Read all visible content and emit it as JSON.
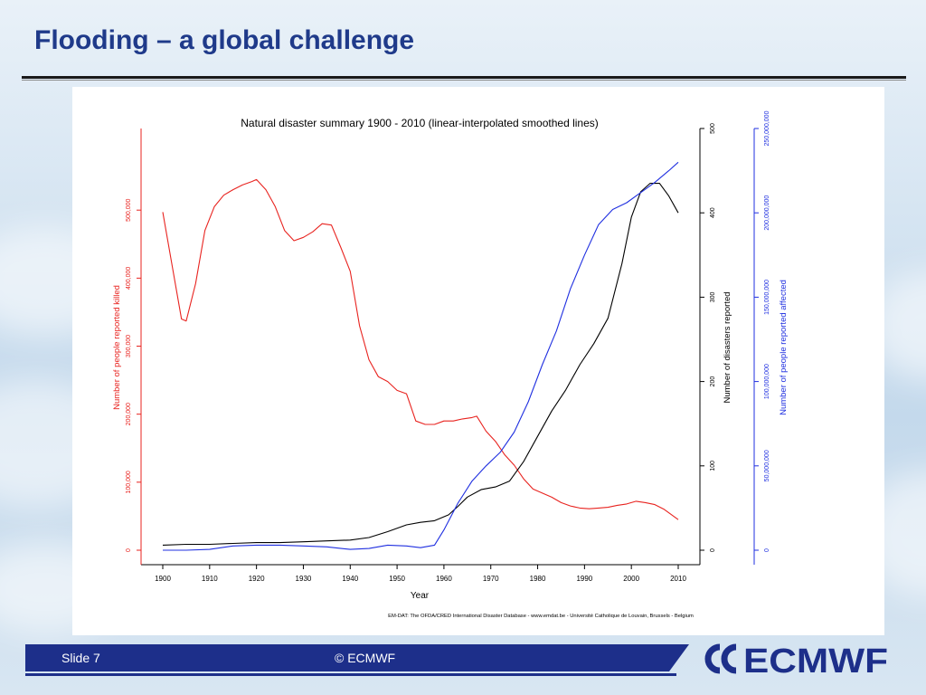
{
  "slide": {
    "title": "Flooding – a global challenge",
    "footer_slide": "Slide 7",
    "footer_copyright": "© ECMWF",
    "logo_text": "ECMWF"
  },
  "colors": {
    "title": "#1f3a8a",
    "footer": "#1d2f8a",
    "killed": "#e8231f",
    "reported": "#000000",
    "affected": "#1f2fe0"
  },
  "chart_data": {
    "type": "line",
    "title": "Natural disaster summary 1900 - 2010 (linear-interpolated smoothed lines)",
    "xlabel": "Year",
    "xlim": [
      1900,
      2010
    ],
    "x_ticks": [
      1900,
      1910,
      1920,
      1930,
      1940,
      1950,
      1960,
      1970,
      1980,
      1990,
      2000,
      2010
    ],
    "source": "EM-DAT: The OFDA/CRED International Disaster Database - www.emdat.be - Université Catholique de Louvain, Brussels - Belgium",
    "axes": {
      "left": {
        "label": "Number of people reported killed",
        "ylim": [
          0,
          620000
        ],
        "ticks": [
          0,
          100000,
          200000,
          300000,
          400000,
          500000
        ],
        "tick_labels": [
          "0",
          "100,000",
          "200,000",
          "300,000",
          "400,000",
          "500,000"
        ]
      },
      "right": {
        "label": "Number of disasters reported",
        "ylim": [
          0,
          500
        ],
        "ticks": [
          0,
          100,
          200,
          300,
          400,
          500
        ],
        "tick_labels": [
          "0",
          "100",
          "200",
          "300",
          "400",
          "500"
        ]
      },
      "right2": {
        "label": "Number of people reported affected",
        "ylim": [
          0,
          250000000
        ],
        "ticks": [
          0,
          50000000,
          100000000,
          150000000,
          200000000,
          250000000
        ],
        "tick_labels": [
          "0",
          "50,000,000",
          "100,000,000",
          "150,000,000",
          "200,000,000",
          "250,000,000"
        ]
      }
    },
    "series": [
      {
        "axis": "left",
        "color": "#e8231f",
        "x": [
          1900,
          1902,
          1904,
          1905,
          1907,
          1909,
          1911,
          1913,
          1915,
          1917,
          1919,
          1920,
          1922,
          1924,
          1926,
          1928,
          1930,
          1932,
          1934,
          1936,
          1938,
          1940,
          1942,
          1944,
          1946,
          1948,
          1950,
          1952,
          1954,
          1956,
          1958,
          1960,
          1962,
          1964,
          1966,
          1967,
          1969,
          1971,
          1973,
          1975,
          1977,
          1979,
          1981,
          1983,
          1985,
          1987,
          1989,
          1991,
          1993,
          1995,
          1997,
          1999,
          2001,
          2003,
          2005,
          2007,
          2010
        ],
        "y": [
          497000,
          418000,
          340000,
          337000,
          392000,
          470000,
          505000,
          522000,
          530000,
          537000,
          542000,
          545000,
          530000,
          505000,
          470000,
          455000,
          460000,
          468000,
          480000,
          478000,
          445000,
          410000,
          330000,
          280000,
          255000,
          248000,
          235000,
          230000,
          190000,
          185000,
          185000,
          190000,
          190000,
          193000,
          195000,
          197000,
          175000,
          160000,
          140000,
          125000,
          105000,
          90000,
          84000,
          78000,
          70000,
          65000,
          62000,
          61000,
          62000,
          63000,
          66000,
          68000,
          72000,
          70000,
          67000,
          60000,
          45000
        ]
      },
      {
        "axis": "right",
        "color": "#000000",
        "x": [
          1900,
          1905,
          1910,
          1915,
          1920,
          1925,
          1930,
          1935,
          1940,
          1944,
          1948,
          1952,
          1955,
          1958,
          1961,
          1963,
          1965,
          1968,
          1971,
          1974,
          1977,
          1980,
          1983,
          1986,
          1989,
          1992,
          1995,
          1998,
          2000,
          2002,
          2004,
          2006,
          2008,
          2010
        ],
        "y": [
          6,
          7,
          7,
          8,
          9,
          9,
          10,
          11,
          12,
          15,
          22,
          30,
          33,
          35,
          42,
          52,
          63,
          72,
          75,
          82,
          105,
          135,
          165,
          190,
          220,
          245,
          275,
          340,
          395,
          425,
          435,
          435,
          420,
          400
        ]
      },
      {
        "axis": "right2",
        "color": "#1f2fe0",
        "x": [
          1900,
          1905,
          1910,
          1915,
          1920,
          1925,
          1930,
          1935,
          1940,
          1944,
          1948,
          1952,
          1955,
          1958,
          1960,
          1963,
          1966,
          1969,
          1972,
          1975,
          1978,
          1981,
          1984,
          1987,
          1990,
          1993,
          1996,
          1999,
          2002,
          2005,
          2008,
          2010
        ],
        "y": [
          0,
          0,
          500000,
          2500000,
          3000000,
          3000000,
          2500000,
          2000000,
          500000,
          1000000,
          3000000,
          2500000,
          1500000,
          3000000,
          12000000,
          28000000,
          41000000,
          50000000,
          58000000,
          70000000,
          88000000,
          110000000,
          130000000,
          155000000,
          175000000,
          193000000,
          202000000,
          206000000,
          212000000,
          218000000,
          225000000,
          230000000
        ]
      }
    ]
  }
}
